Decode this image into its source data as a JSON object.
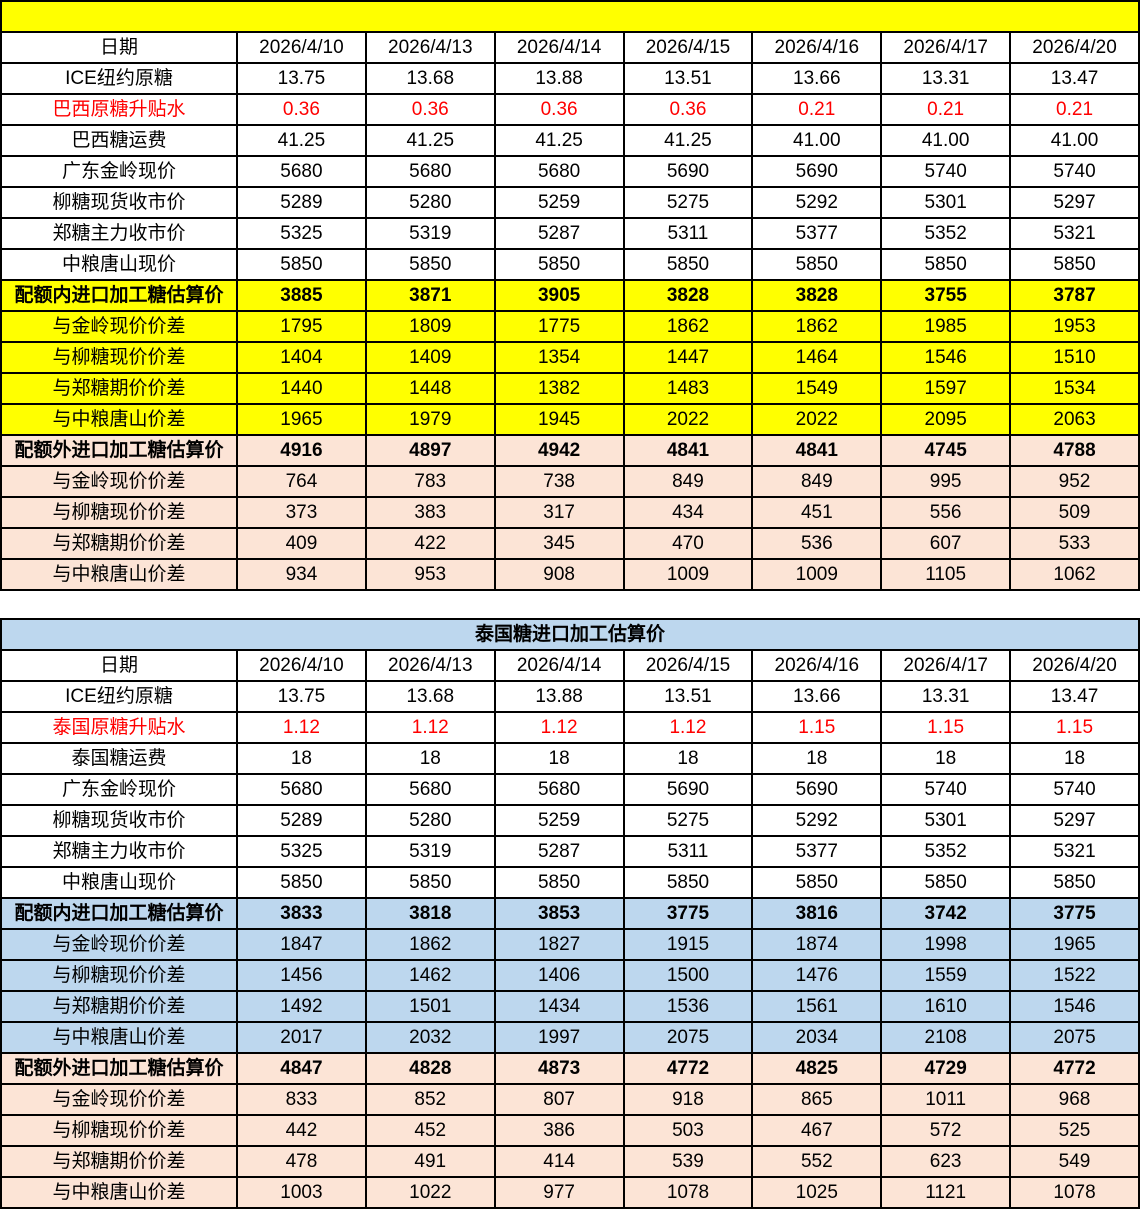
{
  "colors": {
    "highlight_yellow": "#FFFF00",
    "highlight_peach": "#FCE4D6",
    "highlight_blue": "#BDD7EE",
    "alert_red": "#FF0000",
    "grid_black": "#000000"
  },
  "tables": [
    {
      "name": "brazil-sugar-import-estimates",
      "title": "",
      "title_bg": "yellow",
      "header": {
        "label": "日期",
        "dates": [
          "2026/4/10",
          "2026/4/13",
          "2026/4/14",
          "2026/4/15",
          "2026/4/16",
          "2026/4/17",
          "2026/4/20"
        ]
      },
      "rows": [
        {
          "label": "ICE纽约原糖",
          "bg": "white",
          "bold": false,
          "red": false,
          "values": [
            "13.75",
            "13.68",
            "13.88",
            "13.51",
            "13.66",
            "13.31",
            "13.47"
          ]
        },
        {
          "label": "巴西原糖升贴水",
          "bg": "white",
          "bold": false,
          "red": true,
          "values": [
            "0.36",
            "0.36",
            "0.36",
            "0.36",
            "0.21",
            "0.21",
            "0.21"
          ]
        },
        {
          "label": "巴西糖运费",
          "bg": "white",
          "bold": false,
          "red": false,
          "values": [
            "41.25",
            "41.25",
            "41.25",
            "41.25",
            "41.00",
            "41.00",
            "41.00"
          ]
        },
        {
          "label": "广东金岭现价",
          "bg": "white",
          "bold": false,
          "red": false,
          "values": [
            "5680",
            "5680",
            "5680",
            "5690",
            "5690",
            "5740",
            "5740"
          ]
        },
        {
          "label": "柳糖现货收市价",
          "bg": "white",
          "bold": false,
          "red": false,
          "values": [
            "5289",
            "5280",
            "5259",
            "5275",
            "5292",
            "5301",
            "5297"
          ]
        },
        {
          "label": "郑糖主力收市价",
          "bg": "white",
          "bold": false,
          "red": false,
          "values": [
            "5325",
            "5319",
            "5287",
            "5311",
            "5377",
            "5352",
            "5321"
          ]
        },
        {
          "label": "中粮唐山现价",
          "bg": "white",
          "bold": false,
          "red": false,
          "values": [
            "5850",
            "5850",
            "5850",
            "5850",
            "5850",
            "5850",
            "5850"
          ]
        },
        {
          "label": "配额内进口加工糖估算价",
          "bg": "yellow",
          "bold": true,
          "red": false,
          "values": [
            "3885",
            "3871",
            "3905",
            "3828",
            "3828",
            "3755",
            "3787"
          ]
        },
        {
          "label": "与金岭现价价差",
          "bg": "yellow",
          "bold": false,
          "red": false,
          "values": [
            "1795",
            "1809",
            "1775",
            "1862",
            "1862",
            "1985",
            "1953"
          ]
        },
        {
          "label": "与柳糖现价价差",
          "bg": "yellow",
          "bold": false,
          "red": false,
          "values": [
            "1404",
            "1409",
            "1354",
            "1447",
            "1464",
            "1546",
            "1510"
          ]
        },
        {
          "label": "与郑糖期价价差",
          "bg": "yellow",
          "bold": false,
          "red": false,
          "values": [
            "1440",
            "1448",
            "1382",
            "1483",
            "1549",
            "1597",
            "1534"
          ]
        },
        {
          "label": "与中粮唐山价差",
          "bg": "yellow",
          "bold": false,
          "red": false,
          "values": [
            "1965",
            "1979",
            "1945",
            "2022",
            "2022",
            "2095",
            "2063"
          ]
        },
        {
          "label": "配额外进口加工糖估算价",
          "bg": "peach",
          "bold": true,
          "red": false,
          "values": [
            "4916",
            "4897",
            "4942",
            "4841",
            "4841",
            "4745",
            "4788"
          ]
        },
        {
          "label": "与金岭现价价差",
          "bg": "peach",
          "bold": false,
          "red": false,
          "values": [
            "764",
            "783",
            "738",
            "849",
            "849",
            "995",
            "952"
          ]
        },
        {
          "label": "与柳糖现价价差",
          "bg": "peach",
          "bold": false,
          "red": false,
          "values": [
            "373",
            "383",
            "317",
            "434",
            "451",
            "556",
            "509"
          ]
        },
        {
          "label": "与郑糖期价价差",
          "bg": "peach",
          "bold": false,
          "red": false,
          "values": [
            "409",
            "422",
            "345",
            "470",
            "536",
            "607",
            "533"
          ]
        },
        {
          "label": "与中粮唐山价差",
          "bg": "peach",
          "bold": false,
          "red": false,
          "values": [
            "934",
            "953",
            "908",
            "1009",
            "1009",
            "1105",
            "1062"
          ]
        }
      ]
    },
    {
      "name": "thailand-sugar-import-estimates",
      "title": "泰国糖进口加工估算价",
      "title_bg": "blue",
      "header": {
        "label": "日期",
        "dates": [
          "2026/4/10",
          "2026/4/13",
          "2026/4/14",
          "2026/4/15",
          "2026/4/16",
          "2026/4/17",
          "2026/4/20"
        ]
      },
      "rows": [
        {
          "label": "ICE纽约原糖",
          "bg": "white",
          "bold": false,
          "red": false,
          "values": [
            "13.75",
            "13.68",
            "13.88",
            "13.51",
            "13.66",
            "13.31",
            "13.47"
          ]
        },
        {
          "label": "泰国原糖升贴水",
          "bg": "white",
          "bold": false,
          "red": true,
          "values": [
            "1.12",
            "1.12",
            "1.12",
            "1.12",
            "1.15",
            "1.15",
            "1.15"
          ]
        },
        {
          "label": "泰国糖运费",
          "bg": "white",
          "bold": false,
          "red": false,
          "values": [
            "18",
            "18",
            "18",
            "18",
            "18",
            "18",
            "18"
          ]
        },
        {
          "label": "广东金岭现价",
          "bg": "white",
          "bold": false,
          "red": false,
          "values": [
            "5680",
            "5680",
            "5680",
            "5690",
            "5690",
            "5740",
            "5740"
          ]
        },
        {
          "label": "柳糖现货收市价",
          "bg": "white",
          "bold": false,
          "red": false,
          "values": [
            "5289",
            "5280",
            "5259",
            "5275",
            "5292",
            "5301",
            "5297"
          ]
        },
        {
          "label": "郑糖主力收市价",
          "bg": "white",
          "bold": false,
          "red": false,
          "values": [
            "5325",
            "5319",
            "5287",
            "5311",
            "5377",
            "5352",
            "5321"
          ]
        },
        {
          "label": "中粮唐山现价",
          "bg": "white",
          "bold": false,
          "red": false,
          "values": [
            "5850",
            "5850",
            "5850",
            "5850",
            "5850",
            "5850",
            "5850"
          ]
        },
        {
          "label": "配额内进口加工糖估算价",
          "bg": "blue",
          "bold": true,
          "red": false,
          "values": [
            "3833",
            "3818",
            "3853",
            "3775",
            "3816",
            "3742",
            "3775"
          ]
        },
        {
          "label": "与金岭现价价差",
          "bg": "blue",
          "bold": false,
          "red": false,
          "values": [
            "1847",
            "1862",
            "1827",
            "1915",
            "1874",
            "1998",
            "1965"
          ]
        },
        {
          "label": "与柳糖现价价差",
          "bg": "blue",
          "bold": false,
          "red": false,
          "values": [
            "1456",
            "1462",
            "1406",
            "1500",
            "1476",
            "1559",
            "1522"
          ]
        },
        {
          "label": "与郑糖期价价差",
          "bg": "blue",
          "bold": false,
          "red": false,
          "values": [
            "1492",
            "1501",
            "1434",
            "1536",
            "1561",
            "1610",
            "1546"
          ]
        },
        {
          "label": "与中粮唐山价差",
          "bg": "blue",
          "bold": false,
          "red": false,
          "values": [
            "2017",
            "2032",
            "1997",
            "2075",
            "2034",
            "2108",
            "2075"
          ]
        },
        {
          "label": "配额外进口加工糖估算价",
          "bg": "peach",
          "bold": true,
          "red": false,
          "values": [
            "4847",
            "4828",
            "4873",
            "4772",
            "4825",
            "4729",
            "4772"
          ]
        },
        {
          "label": "与金岭现价价差",
          "bg": "peach",
          "bold": false,
          "red": false,
          "values": [
            "833",
            "852",
            "807",
            "918",
            "865",
            "1011",
            "968"
          ]
        },
        {
          "label": "与柳糖现价价差",
          "bg": "peach",
          "bold": false,
          "red": false,
          "values": [
            "442",
            "452",
            "386",
            "503",
            "467",
            "572",
            "525"
          ]
        },
        {
          "label": "与郑糖期价价差",
          "bg": "peach",
          "bold": false,
          "red": false,
          "values": [
            "478",
            "491",
            "414",
            "539",
            "552",
            "623",
            "549"
          ]
        },
        {
          "label": "与中粮唐山价差",
          "bg": "peach",
          "bold": false,
          "red": false,
          "values": [
            "1003",
            "1022",
            "977",
            "1078",
            "1025",
            "1121",
            "1078"
          ]
        }
      ]
    }
  ]
}
